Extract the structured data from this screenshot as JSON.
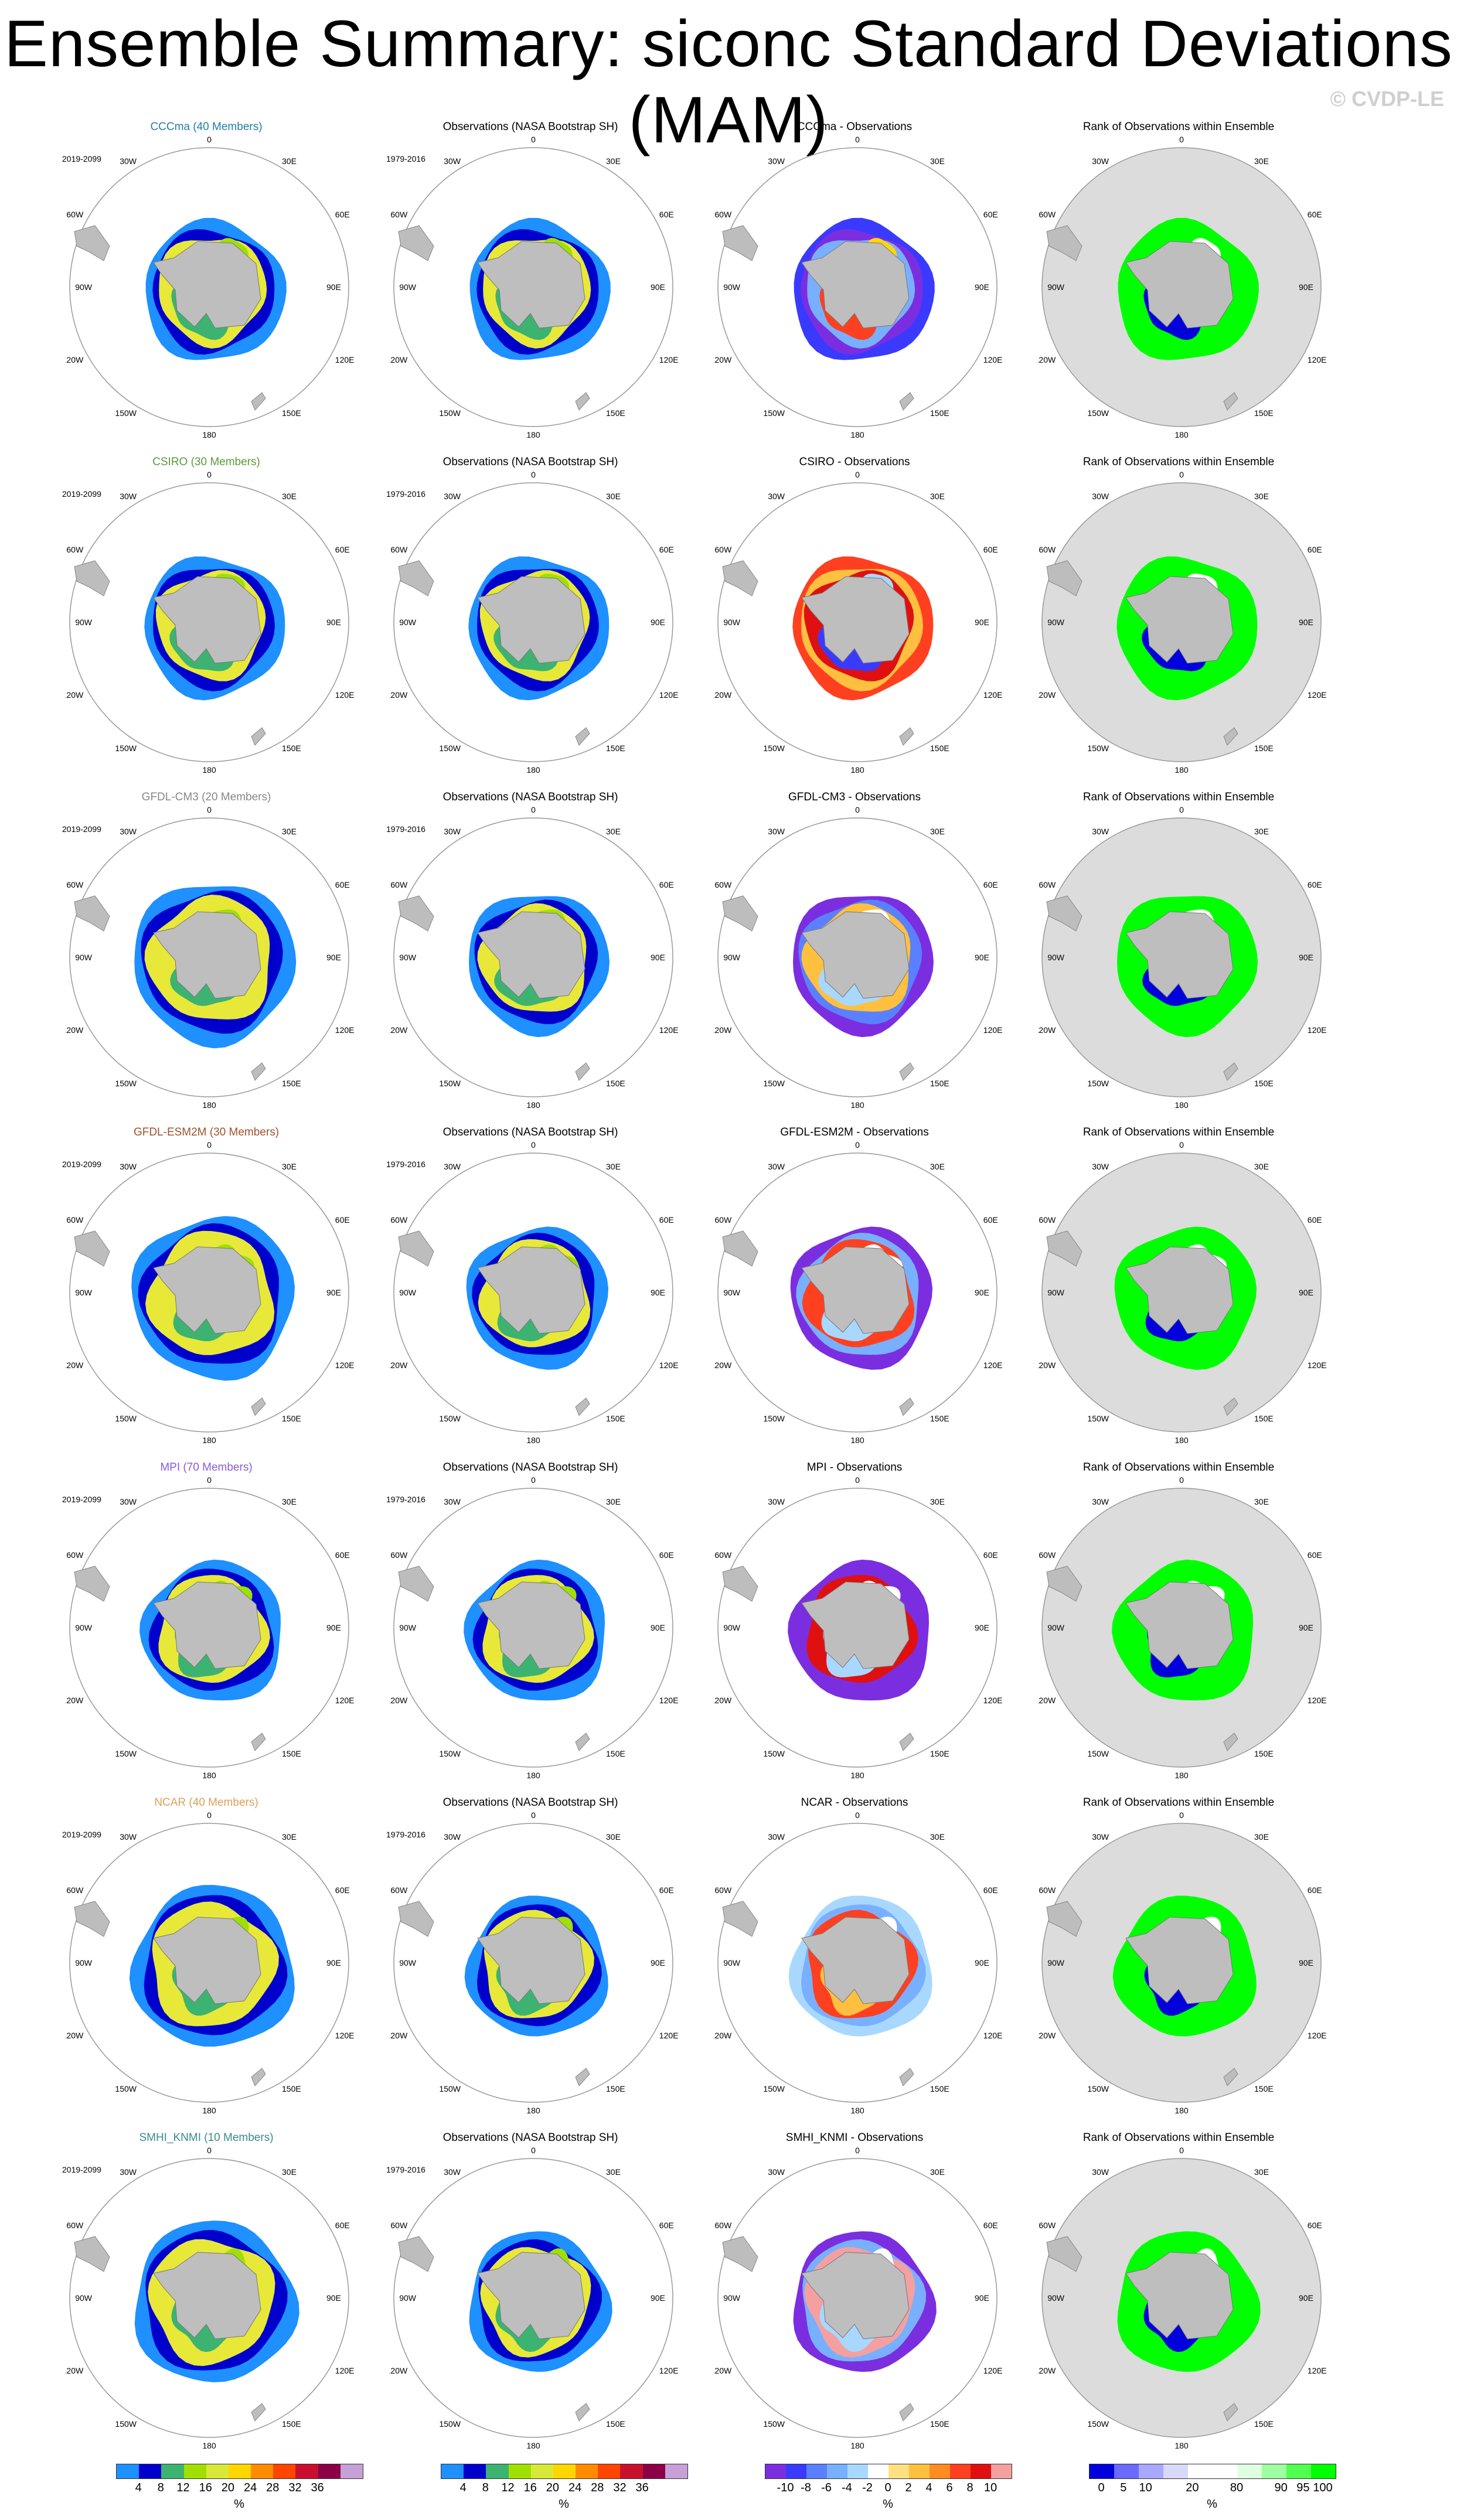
{
  "title": "Ensemble Summary: siconc Standard Deviations (MAM)",
  "copyright": "© CVDP-LE",
  "longitude_labels": [
    "0",
    "30E",
    "60E",
    "90E",
    "120E",
    "150E",
    "180",
    "150W",
    "120W",
    "90W",
    "60W",
    "30W"
  ],
  "obs_title": "Observations (NASA Bootstrap SH)",
  "rank_title": "Rank of Observations within Ensemble",
  "rows": [
    {
      "model_title": "CCCma (40 Members)",
      "color": "#1f7fa8",
      "model_period": "2019-2099",
      "obs_period": "1979-2016",
      "diff_title": "CCCma - Observations"
    },
    {
      "model_title": "CSIRO (30 Members)",
      "color": "#5a9a3c",
      "model_period": "2019-2099",
      "obs_period": "1979-2016",
      "diff_title": "CSIRO - Observations"
    },
    {
      "model_title": "GFDL-CM3 (20 Members)",
      "color": "#888888",
      "model_period": "2019-2099",
      "obs_period": "1979-2016",
      "diff_title": "GFDL-CM3 - Observations"
    },
    {
      "model_title": "GFDL-ESM2M (30 Members)",
      "color": "#a0522d",
      "model_period": "2019-2099",
      "obs_period": "1979-2016",
      "diff_title": "GFDL-ESM2M - Observations"
    },
    {
      "model_title": "MPI (70 Members)",
      "color": "#8a5ae0",
      "model_period": "2019-2099",
      "obs_period": "1979-2016",
      "diff_title": "MPI - Observations"
    },
    {
      "model_title": "NCAR (40 Members)",
      "color": "#d9a25a",
      "model_period": "2019-2099",
      "obs_period": "1979-2016",
      "diff_title": "NCAR - Observations"
    },
    {
      "model_title": "SMHI_KNMI (10 Members)",
      "color": "#3c8a8a",
      "model_period": "2019-2099",
      "obs_period": "1979-2016",
      "diff_title": "SMHI_KNMI - Observations"
    }
  ],
  "colorbars": {
    "stddev": {
      "colors": [
        "#1e90ff",
        "#0000cd",
        "#3cb371",
        "#a0e000",
        "#d8e838",
        "#ffd700",
        "#ff8c00",
        "#ff4500",
        "#c8102e",
        "#8b0046",
        "#c8a0d8"
      ],
      "labels": [
        "4",
        "8",
        "12",
        "16",
        "20",
        "24",
        "28",
        "32",
        "36"
      ],
      "unit": "%"
    },
    "diff": {
      "colors": [
        "#7b2ee0",
        "#3a3aff",
        "#5a80ff",
        "#78b0ff",
        "#a8d8ff",
        "#ffffff",
        "#ffe080",
        "#ffc040",
        "#ff8c20",
        "#ff4020",
        "#e01010",
        "#f4a0a0"
      ],
      "labels": [
        "-10",
        "-8",
        "-6",
        "-4",
        "-2",
        "0",
        "2",
        "4",
        "6",
        "8",
        "10"
      ],
      "unit": "%"
    },
    "rank": {
      "colors": [
        "#0000dd",
        "#6a6aff",
        "#a8a8ff",
        "#d8d8f8",
        "#ffffff",
        "#ffffff",
        "#e0ffe0",
        "#a0ffa0",
        "#50ff50",
        "#00ff00"
      ],
      "labels": [
        "0",
        "5",
        "10",
        "20",
        "80",
        "90",
        "95",
        "100"
      ],
      "unit": "%"
    }
  }
}
